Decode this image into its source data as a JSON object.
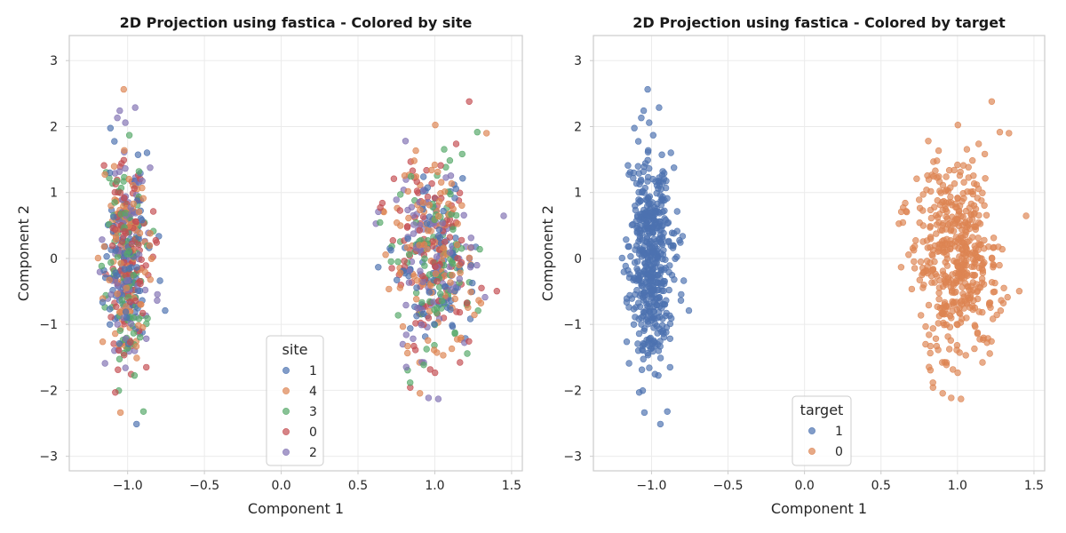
{
  "chart_data": [
    {
      "type": "scatter",
      "title": "2D Projection using fastica - Colored by site",
      "xlabel": "Component 1",
      "ylabel": "Component 2",
      "xlim": [
        -1.38,
        1.57
      ],
      "ylim": [
        -3.22,
        3.38
      ],
      "xticks": [
        -1.0,
        -0.5,
        0.0,
        0.5,
        1.0,
        1.5
      ],
      "xtick_labels": [
        "−1.0",
        "−0.5",
        "0.0",
        "0.5",
        "1.0",
        "1.5"
      ],
      "yticks": [
        -3,
        -2,
        -1,
        0,
        1,
        2,
        3
      ],
      "ytick_labels": [
        "−3",
        "−2",
        "−1",
        "0",
        "1",
        "2",
        "3"
      ],
      "grid": true,
      "legend": {
        "title": "site",
        "placement": "lower-center",
        "entries": [
          "1",
          "4",
          "3",
          "0",
          "2"
        ]
      },
      "color_by": "site",
      "approximate_point_count": 1000,
      "clusters": [
        {
          "x_center": -1.0,
          "x_spread": 0.07,
          "y_center": 0.0,
          "y_spread": 0.95,
          "y_range": [
            -2.9,
            3.1
          ],
          "target": "1"
        },
        {
          "x_center": 1.0,
          "x_spread": 0.14,
          "y_center": 0.0,
          "y_spread": 0.9,
          "y_range": [
            -2.4,
            2.75
          ],
          "target": "0"
        }
      ]
    },
    {
      "type": "scatter",
      "title": "2D Projection using fastica - Colored by target",
      "xlabel": "Component 1",
      "ylabel": "Component 2",
      "xlim": [
        -1.38,
        1.57
      ],
      "ylim": [
        -3.22,
        3.38
      ],
      "xticks": [
        -1.0,
        -0.5,
        0.0,
        0.5,
        1.0,
        1.5
      ],
      "xtick_labels": [
        "−1.0",
        "−0.5",
        "0.0",
        "0.5",
        "1.0",
        "1.5"
      ],
      "yticks": [
        -3,
        -2,
        -1,
        0,
        1,
        2,
        3
      ],
      "ytick_labels": [
        "−3",
        "−2",
        "−1",
        "0",
        "1",
        "2",
        "3"
      ],
      "grid": true,
      "legend": {
        "title": "target",
        "placement": "lower-center",
        "entries": [
          "1",
          "0"
        ]
      },
      "color_by": "target",
      "approximate_point_count": 1000,
      "clusters": [
        {
          "x_center": -1.0,
          "x_spread": 0.07,
          "y_center": 0.0,
          "y_spread": 0.95,
          "y_range": [
            -2.9,
            3.1
          ],
          "target": "1"
        },
        {
          "x_center": 1.0,
          "x_spread": 0.14,
          "y_center": 0.0,
          "y_spread": 0.9,
          "y_range": [
            -2.4,
            2.75
          ],
          "target": "0"
        }
      ]
    }
  ],
  "colors": {
    "site": {
      "1": "#4c72b0",
      "4": "#dd8452",
      "3": "#55a868",
      "0": "#c44e52",
      "2": "#8172b3"
    },
    "target": {
      "1": "#4c72b0",
      "0": "#dd8452"
    },
    "grid": "#ebebeb",
    "axes_edge": "#cccccc",
    "text": "#262626"
  }
}
